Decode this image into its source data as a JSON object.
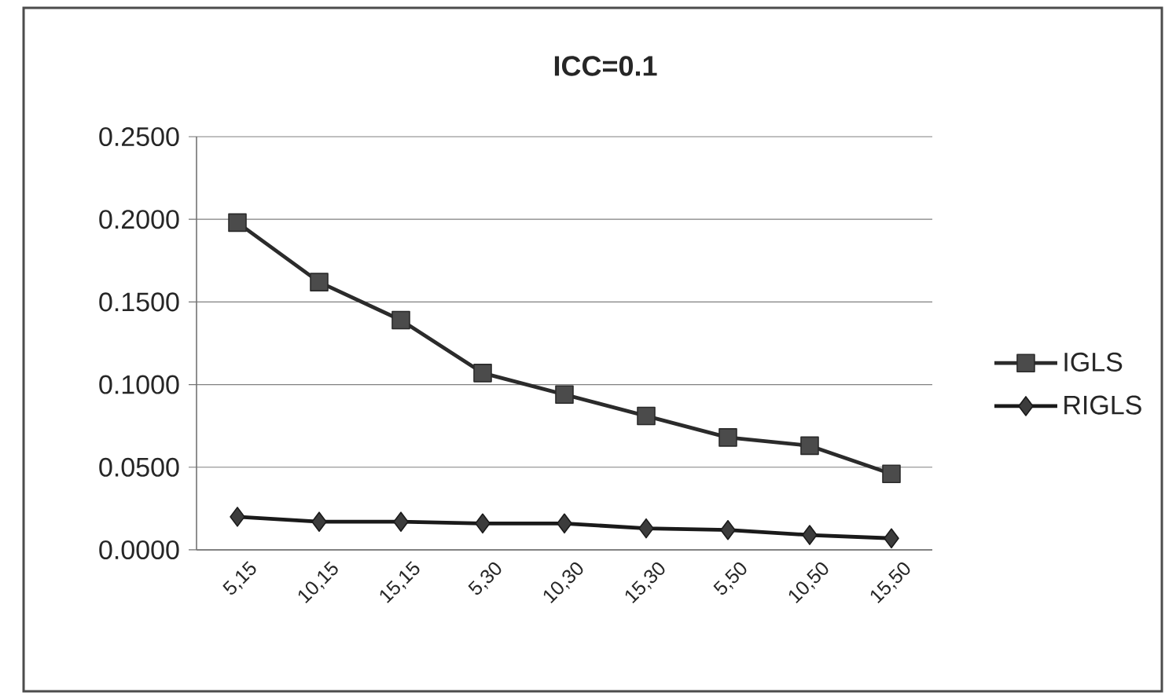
{
  "chart_data": {
    "type": "line",
    "title": "ICC=0.1",
    "categories": [
      "5,15",
      "10,15",
      "15,15",
      "5,30",
      "10,30",
      "15,30",
      "5,50",
      "10,50",
      "15,50"
    ],
    "series": [
      {
        "name": "IGLS",
        "color": "#2b2b2b",
        "marker": "square",
        "values": [
          0.198,
          0.162,
          0.139,
          0.107,
          0.094,
          0.081,
          0.068,
          0.063,
          0.046
        ]
      },
      {
        "name": "RIGLS",
        "color": "#1a1a1a",
        "marker": "diamond",
        "values": [
          0.02,
          0.017,
          0.017,
          0.016,
          0.016,
          0.013,
          0.012,
          0.009,
          0.007
        ]
      }
    ],
    "ylim": [
      0,
      0.25
    ],
    "yticks": [
      {
        "value": 0,
        "label": "0.0000"
      },
      {
        "value": 0.05,
        "label": "0.0500"
      },
      {
        "value": 0.1,
        "label": "0.1000"
      },
      {
        "value": 0.15,
        "label": "0.1500"
      },
      {
        "value": 0.2,
        "label": "0.2000"
      },
      {
        "value": 0.25,
        "label": "0.2500"
      }
    ],
    "grid": "y",
    "legend": "right"
  }
}
